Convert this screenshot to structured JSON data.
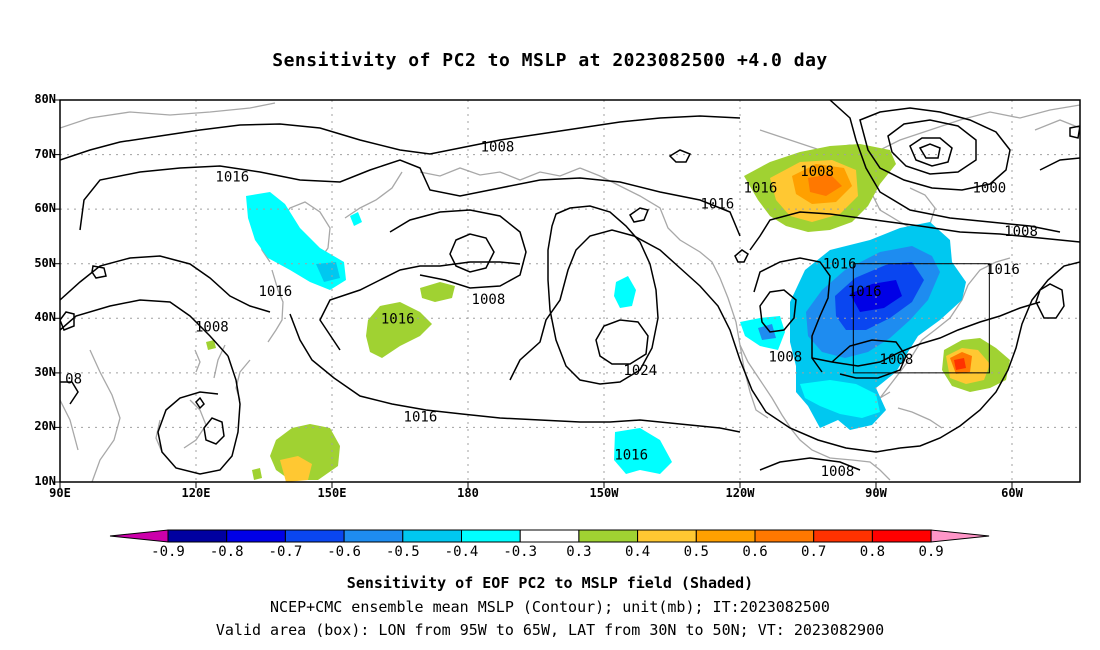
{
  "title": "Sensitivity of PC2 to MSLP at 2023082500 +4.0 day",
  "lat_labels": [
    "80N",
    "70N",
    "60N",
    "50N",
    "40N",
    "30N",
    "20N",
    "10N"
  ],
  "lon_labels": [
    "90E",
    "120E",
    "150E",
    "180",
    "150W",
    "120W",
    "90W",
    "60W"
  ],
  "contour_labels": [
    {
      "text": "1008",
      "lon": 186.5,
      "lat": 71.5
    },
    {
      "text": "1016",
      "lon": 128,
      "lat": 66
    },
    {
      "text": "1016",
      "lon": 244.5,
      "lat": 64
    },
    {
      "text": "1016",
      "lon": 235,
      "lat": 61
    },
    {
      "text": "1008",
      "lon": 257,
      "lat": 67
    },
    {
      "text": "1000",
      "lon": 295,
      "lat": 64
    },
    {
      "text": "1008",
      "lon": 302,
      "lat": 56
    },
    {
      "text": "1016",
      "lon": 262,
      "lat": 50
    },
    {
      "text": "1016",
      "lon": 298,
      "lat": 49
    },
    {
      "text": "1016",
      "lon": 267.5,
      "lat": 45
    },
    {
      "text": "1016",
      "lon": 137.5,
      "lat": 45
    },
    {
      "text": "1008",
      "lon": 184.5,
      "lat": 43.5
    },
    {
      "text": "1016",
      "lon": 164.5,
      "lat": 40
    },
    {
      "text": "1008",
      "lon": 123.5,
      "lat": 38.5
    },
    {
      "text": "1008",
      "lon": 250,
      "lat": 33
    },
    {
      "text": "1008",
      "lon": 274.5,
      "lat": 32.5
    },
    {
      "text": "1024",
      "lon": 218,
      "lat": 30.5
    },
    {
      "text": "08",
      "lon": 93,
      "lat": 29
    },
    {
      "text": "1016",
      "lon": 169.5,
      "lat": 22
    },
    {
      "text": "1016",
      "lon": 216,
      "lat": 15
    },
    {
      "text": "1008",
      "lon": 261.5,
      "lat": 12
    }
  ],
  "colorbar": {
    "values": [
      "-0.9",
      "-0.8",
      "-0.7",
      "-0.6",
      "-0.5",
      "-0.4",
      "-0.3",
      "0.3",
      "0.4",
      "0.5",
      "0.6",
      "0.7",
      "0.8",
      "0.9"
    ],
    "colors": [
      "#cc00aa",
      "#0000a0",
      "#0000e6",
      "#0a46f0",
      "#1e8cf0",
      "#00c8f0",
      "#00ffff",
      "#ffffff",
      "#a0d232",
      "#ffc832",
      "#ffa000",
      "#ff7800",
      "#ff3200",
      "#ff0000",
      "#ff96c8"
    ]
  },
  "valid_box": {
    "lon_min": 265,
    "lon_max": 295,
    "lat_min": 30,
    "lat_max": 50
  },
  "footer": [
    "Sensitivity of EOF PC2 to MSLP field (Shaded)",
    "NCEP+CMC ensemble mean MSLP (Contour); unit(mb); IT:2023082500",
    "Valid area (box): LON from 95W to 65W, LAT from 30N to 50N; VT: 2023082900"
  ]
}
